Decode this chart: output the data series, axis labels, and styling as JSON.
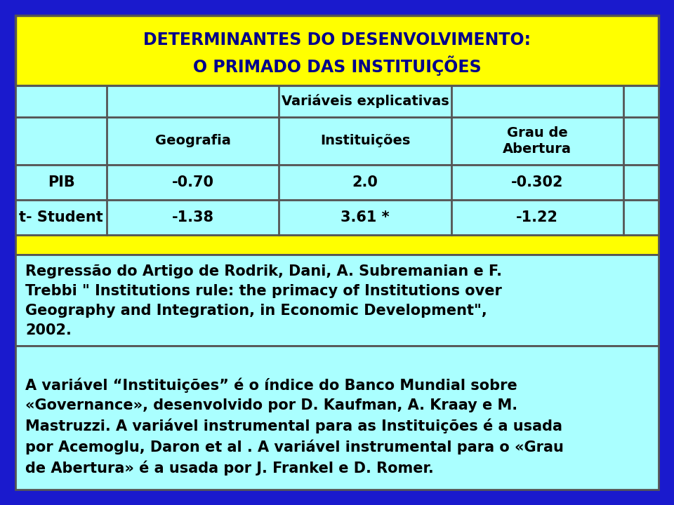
{
  "title_line1": "DETERMINANTES DO DESENVOLVIMENTO:",
  "title_line2": "O PRIMADO DAS INSTITUIÇÕES",
  "title_bg": "#FFFF00",
  "title_color": "#00008B",
  "header1": "Variáveis explicativas",
  "col_headers": [
    "Geografia",
    "Instituições",
    "Grau de\nAbertura"
  ],
  "row_labels": [
    "PIB",
    "t- Student"
  ],
  "data": [
    [
      "-0.70",
      "2.0",
      "-0.302"
    ],
    [
      "-1.38",
      "3.61 *",
      "-1.22"
    ]
  ],
  "table_bg": "#AAFFFF",
  "outer_bg": "#1A1ACD",
  "note1": "Regressão do Artigo de Rodrik, Dani, A. Subremanian e F.\nTrebbi \" Institutions rule: the primacy of Institutions over\nGeography and Integration, in Economic Development\",\n2002.",
  "note2": "A variável “Instituições” é o índice do Banco Mundial sobre\n«Governance», desenvolvido por D. Kaufman, A. Kraay e M.\nMastruzzi. A variável instrumental para as Instituições é a usada\npor Acemoglu, Daron et al . A variável instrumental para o «Grau\nde Abertura» é a usada por J. Frankel e D. Romer.",
  "yellow_strip_bg": "#FFFF00",
  "border_color": "#555555",
  "text_color": "#000000",
  "font_size_title": 17,
  "font_size_header": 14,
  "font_size_data": 15,
  "font_size_note1": 15,
  "font_size_note2": 15
}
